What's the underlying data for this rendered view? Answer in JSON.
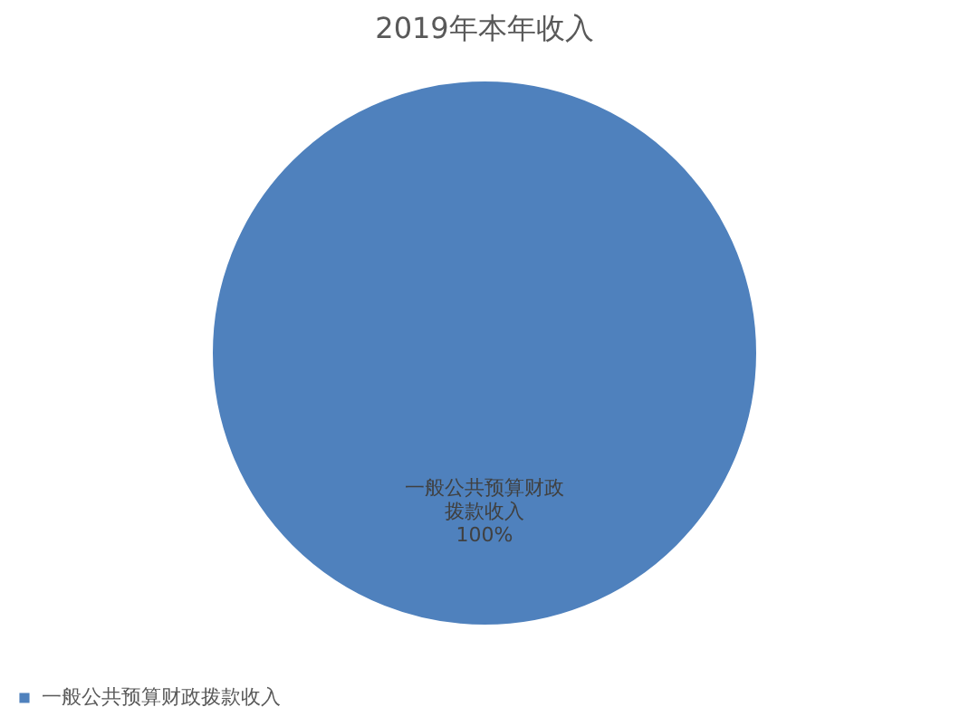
{
  "chart_data": {
    "type": "pie",
    "title": "2019年本年收入",
    "categories": [
      "一般公共预算财政拨款收入"
    ],
    "values": [
      100
    ],
    "colors": [
      "#4f81bd"
    ],
    "value_labels": [
      "100%"
    ],
    "legend": "bottom"
  }
}
